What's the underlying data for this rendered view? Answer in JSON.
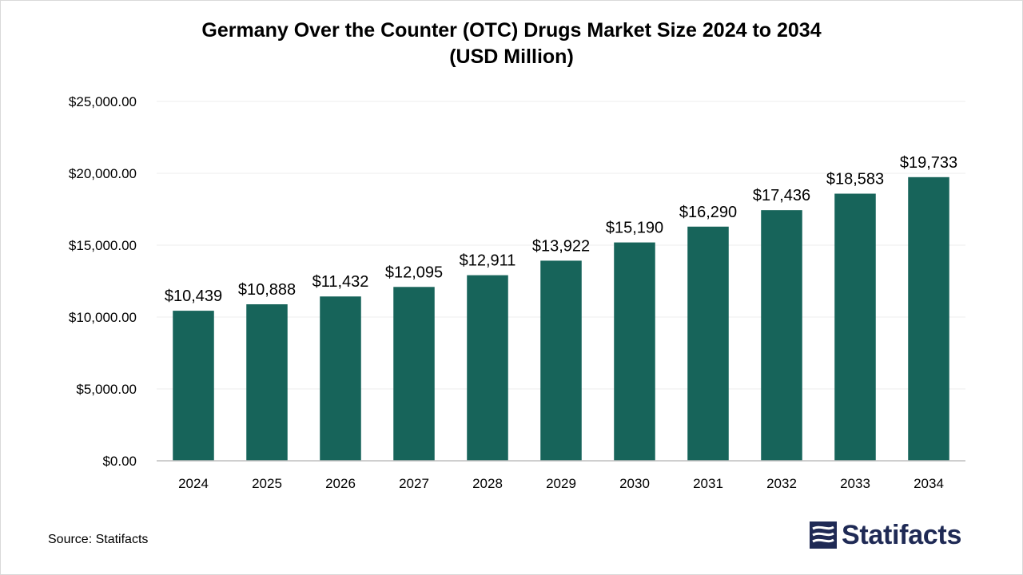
{
  "title_line1": "Germany Over the Counter (OTC) Drugs Market Size 2024 to 2034",
  "title_line2": "(USD Million)",
  "source": "Source: Statifacts",
  "logo_text": "Statifacts",
  "colors": {
    "bar": "#17645a",
    "grid": "#ececec",
    "axis": "#bfbfbf",
    "logo": "#1f2a55"
  },
  "chart_data": {
    "type": "bar",
    "title": "Germany Over the Counter (OTC) Drugs Market Size 2024 to 2034 (USD Million)",
    "categories": [
      "2024",
      "2025",
      "2026",
      "2027",
      "2028",
      "2029",
      "2030",
      "2031",
      "2032",
      "2033",
      "2034"
    ],
    "values": [
      10439,
      10888,
      11432,
      12095,
      12911,
      13922,
      15190,
      16290,
      17436,
      18583,
      19733
    ],
    "data_labels": [
      "$10,439",
      "$10,888",
      "$11,432",
      "$12,095",
      "$12,911",
      "$13,922",
      "$15,190",
      "$16,290",
      "$17,436",
      "$18,583",
      "$19,733"
    ],
    "yticks": [
      0,
      5000,
      10000,
      15000,
      20000,
      25000
    ],
    "ytick_labels": [
      "$0.00",
      "$5,000.00",
      "$10,000.00",
      "$15,000.00",
      "$20,000.00",
      "$25,000.00"
    ],
    "ylim": [
      0,
      25000
    ],
    "xlabel": "",
    "ylabel": "",
    "grid": true,
    "legend": "none"
  }
}
